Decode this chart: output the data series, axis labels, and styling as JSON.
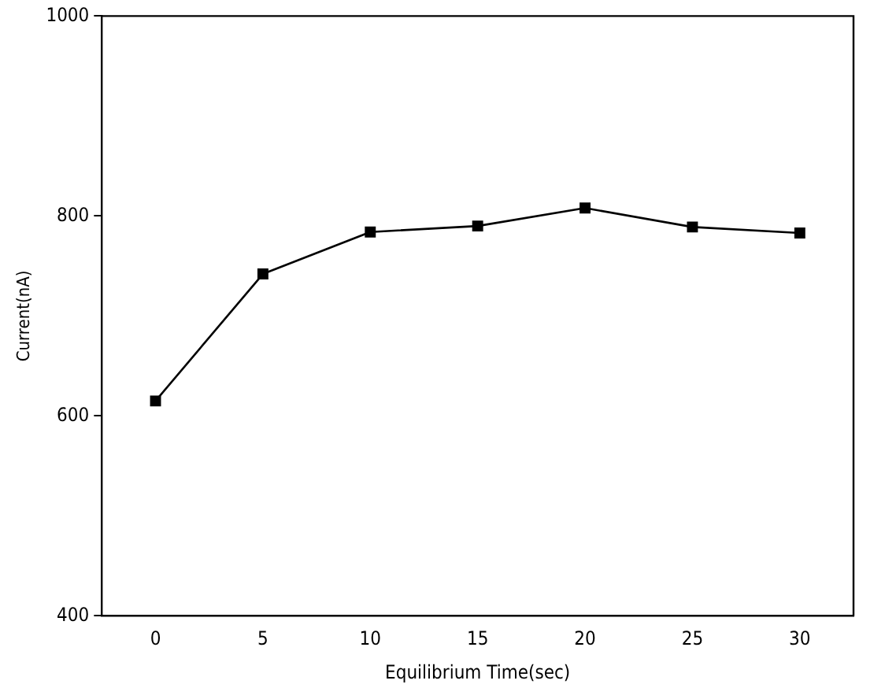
{
  "chart_data": {
    "type": "line",
    "xlabel": "Equilibrium Time(sec)",
    "ylabel": "Current(nA)",
    "x": [
      0,
      5,
      10,
      15,
      20,
      25,
      30
    ],
    "series": [
      {
        "color": "#000000",
        "values": [
          615,
          742,
          784,
          790,
          808,
          789,
          783
        ]
      }
    ],
    "xlim": [
      -2.5,
      32.5
    ],
    "xticks": [
      0,
      5,
      10,
      15,
      20,
      25,
      30
    ],
    "ylim": [
      400,
      1000
    ],
    "yticks": [
      400,
      600,
      800,
      1000
    ],
    "grid": false,
    "legend": false,
    "marker": "square",
    "line_style": "solid"
  }
}
